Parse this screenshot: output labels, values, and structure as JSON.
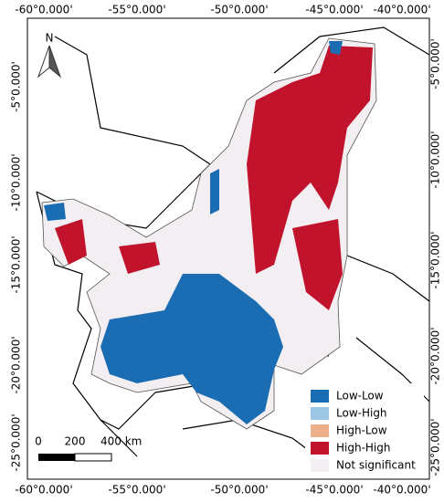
{
  "map": {
    "north_label": "N",
    "longitudes_top": [
      "-60°0.000'",
      "-55°0.000'",
      "-50°0.000'",
      "-45°0.000'",
      "-40°0.000'"
    ],
    "longitudes_bottom": [
      "-60°0.000'",
      "-55°0.000'",
      "-50°0.000'",
      "-45°0.000'",
      "-40°0.000'"
    ],
    "latitudes_left": [
      "-5°0.000'",
      "-10°0.000'",
      "-15°0.000'",
      "-20°0.000'",
      "-25°0.000'"
    ],
    "latitudes_right": [
      "-5°0.000'",
      "-10°0.000'",
      "-15°0.000'",
      "-20°0.000'",
      "-25°0.000'"
    ],
    "scale_bar": [
      "0",
      "200",
      "400 km"
    ],
    "legend": [
      {
        "name": "Low-Low",
        "color": "#1a6db3"
      },
      {
        "name": "Low-High",
        "color": "#9cc6e4"
      },
      {
        "name": "High-Low",
        "color": "#eeb08a"
      },
      {
        "name": "High-High",
        "color": "#c2132c"
      },
      {
        "name": "Not significant",
        "color": "#f3eef1"
      }
    ]
  }
}
